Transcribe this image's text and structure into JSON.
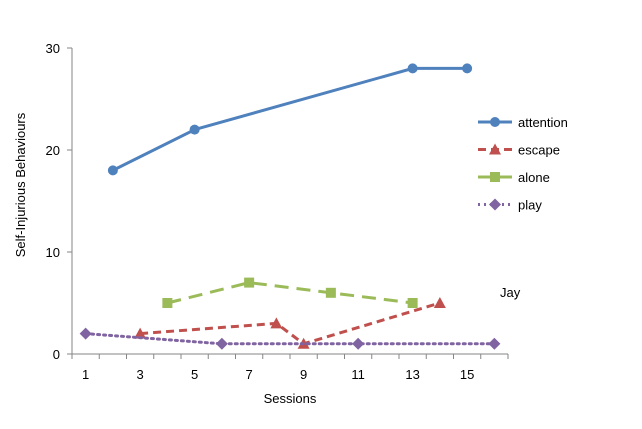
{
  "chart_data": {
    "type": "line",
    "xlabel": "Sessions",
    "ylabel": "Self-Injurious Behaviours",
    "annotation": "Jay",
    "x_categories": [
      1,
      2,
      3,
      4,
      5,
      6,
      7,
      8,
      9,
      10,
      11,
      12,
      13,
      14,
      15,
      16
    ],
    "x_tick_labels": [
      "1",
      "3",
      "5",
      "7",
      "9",
      "11",
      "13",
      "15"
    ],
    "y_ticks": [
      0,
      10,
      20,
      30
    ],
    "ylim": [
      0,
      30
    ],
    "grid": false,
    "legend_position": "right",
    "series": [
      {
        "name": "attention",
        "color": "#4F81BD",
        "marker": "circle",
        "dash": "solid",
        "points": [
          [
            2,
            18
          ],
          [
            5,
            22
          ],
          [
            13,
            28
          ],
          [
            15,
            28
          ]
        ]
      },
      {
        "name": "escape",
        "color": "#C0504D",
        "marker": "triangle",
        "dash": "dashed",
        "points": [
          [
            3,
            2
          ],
          [
            8,
            3
          ],
          [
            9,
            1
          ],
          [
            14,
            5
          ]
        ]
      },
      {
        "name": "alone",
        "color": "#9BBB59",
        "marker": "square",
        "dash": "long-dashed",
        "points": [
          [
            4,
            5
          ],
          [
            7,
            7
          ],
          [
            10,
            6
          ],
          [
            13,
            5
          ]
        ]
      },
      {
        "name": "play",
        "color": "#8064A2",
        "marker": "diamond",
        "dash": "dotted",
        "points": [
          [
            1,
            2
          ],
          [
            6,
            1
          ],
          [
            11,
            1
          ],
          [
            16,
            1
          ]
        ]
      }
    ]
  }
}
